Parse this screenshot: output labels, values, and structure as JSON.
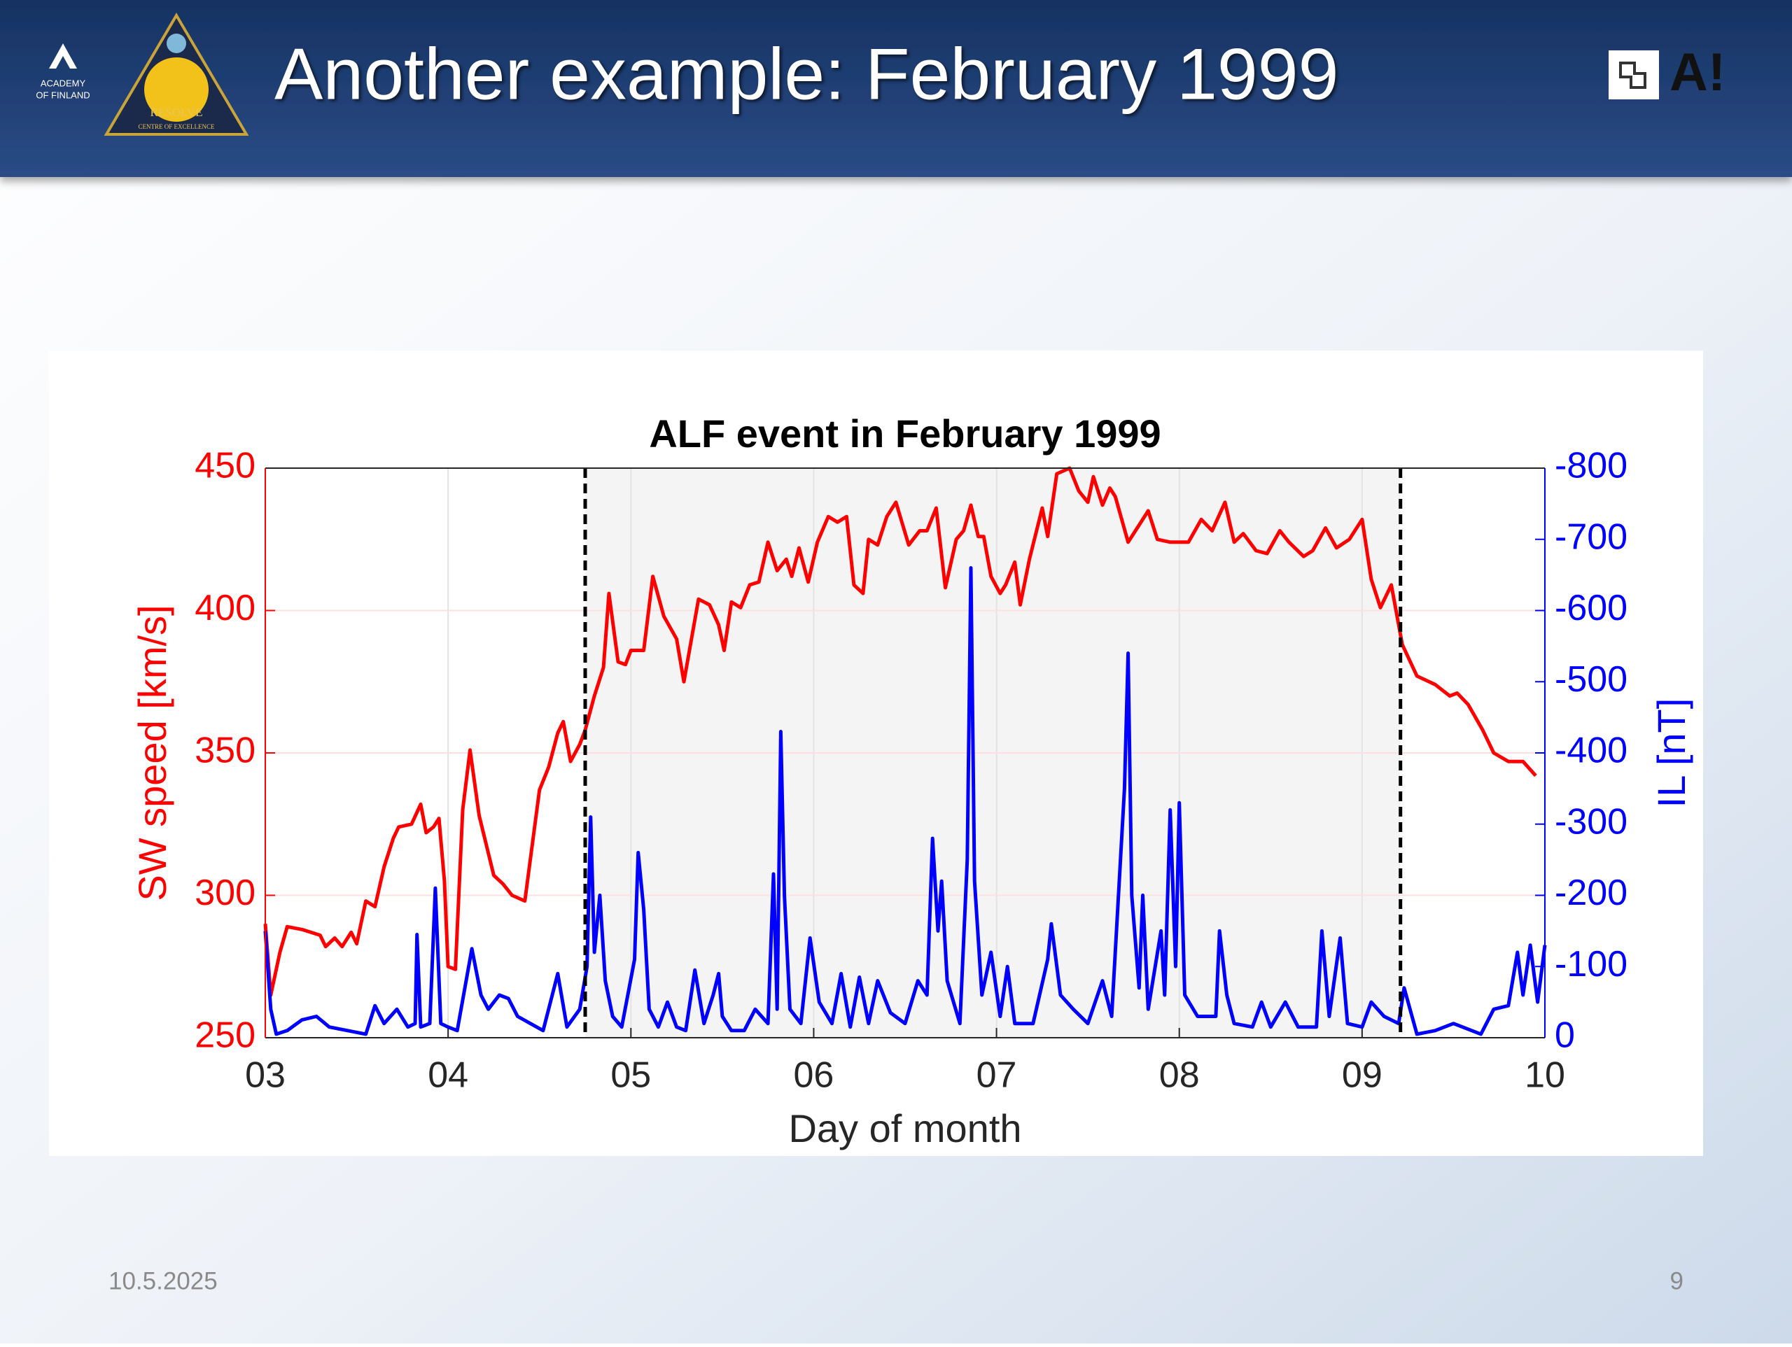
{
  "header": {
    "title": "Another example: February 1999",
    "logo_left": [
      "ACADEMY",
      "OF FINLAND"
    ],
    "logo_center": [
      "RESOLVE",
      "CENTRE OF EXCELLENCE"
    ],
    "logo_right": "A!"
  },
  "chart_data": {
    "type": "line",
    "title": "ALF event in February 1999",
    "xlabel": "Day of month",
    "ylabel": "SW speed [km/s]",
    "y2label": "IL [nT]",
    "xlim": [
      3,
      10
    ],
    "xticks": [
      {
        "value": 3,
        "label": "03"
      },
      {
        "value": 4,
        "label": "04"
      },
      {
        "value": 5,
        "label": "05"
      },
      {
        "value": 6,
        "label": "06"
      },
      {
        "value": 7,
        "label": "07"
      },
      {
        "value": 8,
        "label": "08"
      },
      {
        "value": 9,
        "label": "09"
      },
      {
        "value": 10,
        "label": "10"
      }
    ],
    "ylim": [
      250,
      450
    ],
    "yticks": [
      250,
      300,
      350,
      400,
      450
    ],
    "y2lim": [
      0,
      -800
    ],
    "y2ticks": [
      -800,
      -700,
      -600,
      -500,
      -400,
      -300,
      -200,
      -100,
      0
    ],
    "grid": true,
    "shaded_interval": [
      4.75,
      9.21
    ],
    "y_color": "#ff0000",
    "y2_color": "#0000ff",
    "series": [
      {
        "name": "SW speed",
        "color": "#ff0000",
        "x": [
          3.0,
          3.03,
          3.08,
          3.12,
          3.2,
          3.3,
          3.33,
          3.38,
          3.42,
          3.47,
          3.5,
          3.55,
          3.6,
          3.65,
          3.7,
          3.73,
          3.8,
          3.85,
          3.88,
          3.92,
          3.95,
          3.98,
          4.0,
          4.04,
          4.08,
          4.12,
          4.17,
          4.25,
          4.3,
          4.35,
          4.42,
          4.5,
          4.55,
          4.6,
          4.63,
          4.67,
          4.72,
          4.75,
          4.8,
          4.85,
          4.88,
          4.93,
          4.97,
          5.0,
          5.07,
          5.12,
          5.18,
          5.25,
          5.29,
          5.37,
          5.43,
          5.48,
          5.51,
          5.55,
          5.6,
          5.65,
          5.7,
          5.75,
          5.8,
          5.85,
          5.88,
          5.92,
          5.97,
          6.02,
          6.08,
          6.13,
          6.18,
          6.22,
          6.27,
          6.3,
          6.35,
          6.4,
          6.45,
          6.52,
          6.58,
          6.62,
          6.67,
          6.72,
          6.78,
          6.82,
          6.86,
          6.9,
          6.93,
          6.97,
          7.02,
          7.05,
          7.1,
          7.13,
          7.18,
          7.25,
          7.28,
          7.33,
          7.4,
          7.45,
          7.5,
          7.53,
          7.58,
          7.62,
          7.65,
          7.72,
          7.78,
          7.83,
          7.88,
          7.95,
          8.05,
          8.12,
          8.18,
          8.25,
          8.3,
          8.35,
          8.42,
          8.48,
          8.55,
          8.6,
          8.68,
          8.73,
          8.8,
          8.86,
          8.93,
          9.0,
          9.05,
          9.1,
          9.16,
          9.22,
          9.3,
          9.4,
          9.48,
          9.52,
          9.58,
          9.66,
          9.72,
          9.8,
          9.88,
          9.95
        ],
        "values": [
          290,
          265,
          280,
          289,
          288,
          286,
          282,
          285,
          282,
          287,
          283,
          298,
          296,
          310,
          320,
          324,
          325,
          332,
          322,
          324,
          327,
          305,
          275,
          274,
          330,
          351,
          328,
          307,
          304,
          300,
          298,
          337,
          345,
          357,
          361,
          347,
          353,
          358,
          370,
          380,
          406,
          382,
          381,
          386,
          386,
          412,
          398,
          390,
          375,
          404,
          402,
          395,
          386,
          403,
          401,
          409,
          410,
          424,
          414,
          418,
          412,
          422,
          410,
          424,
          433,
          431,
          433,
          409,
          406,
          425,
          423,
          433,
          438,
          423,
          428,
          428,
          436,
          408,
          425,
          428,
          437,
          426,
          426,
          412,
          406,
          409,
          417,
          402,
          418,
          436,
          426,
          448,
          450,
          442,
          438,
          447,
          437,
          443,
          440,
          424,
          430,
          435,
          425,
          424,
          424,
          432,
          428,
          438,
          424,
          427,
          421,
          420,
          428,
          424,
          419,
          421,
          429,
          422,
          425,
          432,
          411,
          401,
          409,
          388,
          377,
          374,
          370,
          371,
          367,
          358,
          350,
          347,
          347,
          342
        ]
      },
      {
        "name": "IL",
        "color": "#0000ff",
        "axis": "y2",
        "x": [
          3.0,
          3.03,
          3.06,
          3.12,
          3.2,
          3.28,
          3.35,
          3.45,
          3.55,
          3.6,
          3.65,
          3.72,
          3.78,
          3.82,
          3.83,
          3.85,
          3.9,
          3.93,
          3.96,
          4.0,
          4.05,
          4.13,
          4.18,
          4.22,
          4.28,
          4.33,
          4.38,
          4.45,
          4.52,
          4.6,
          4.65,
          4.72,
          4.76,
          4.78,
          4.8,
          4.83,
          4.86,
          4.9,
          4.95,
          5.02,
          5.04,
          5.07,
          5.1,
          5.15,
          5.2,
          5.25,
          5.3,
          5.35,
          5.4,
          5.45,
          5.48,
          5.5,
          5.55,
          5.62,
          5.68,
          5.75,
          5.78,
          5.8,
          5.82,
          5.84,
          5.87,
          5.93,
          5.98,
          6.03,
          6.1,
          6.15,
          6.2,
          6.25,
          6.3,
          6.35,
          6.42,
          6.5,
          6.57,
          6.62,
          6.65,
          6.68,
          6.7,
          6.73,
          6.8,
          6.84,
          6.86,
          6.88,
          6.92,
          6.97,
          7.02,
          7.06,
          7.1,
          7.2,
          7.28,
          7.3,
          7.35,
          7.42,
          7.5,
          7.58,
          7.63,
          7.7,
          7.72,
          7.74,
          7.78,
          7.8,
          7.83,
          7.9,
          7.92,
          7.95,
          7.98,
          8.0,
          8.03,
          8.1,
          8.2,
          8.22,
          8.26,
          8.3,
          8.4,
          8.45,
          8.5,
          8.58,
          8.65,
          8.75,
          8.78,
          8.82,
          8.88,
          8.92,
          9.0,
          9.05,
          9.12,
          9.2,
          9.23,
          9.3,
          9.4,
          9.5,
          9.6,
          9.65,
          9.72,
          9.8,
          9.85,
          9.88,
          9.92,
          9.96,
          10.0
        ],
        "values": [
          -150,
          -40,
          -5,
          -10,
          -25,
          -30,
          -15,
          -10,
          -5,
          -45,
          -20,
          -40,
          -15,
          -20,
          -145,
          -15,
          -20,
          -210,
          -20,
          -15,
          -10,
          -125,
          -60,
          -40,
          -60,
          -55,
          -30,
          -20,
          -10,
          -90,
          -15,
          -40,
          -100,
          -310,
          -120,
          -200,
          -80,
          -30,
          -15,
          -110,
          -260,
          -180,
          -40,
          -15,
          -50,
          -15,
          -10,
          -95,
          -20,
          -60,
          -90,
          -30,
          -10,
          -10,
          -40,
          -20,
          -230,
          -40,
          -430,
          -200,
          -40,
          -20,
          -140,
          -50,
          -20,
          -90,
          -15,
          -85,
          -20,
          -80,
          -35,
          -20,
          -80,
          -60,
          -280,
          -150,
          -220,
          -80,
          -20,
          -250,
          -660,
          -220,
          -60,
          -120,
          -30,
          -100,
          -20,
          -20,
          -110,
          -160,
          -60,
          -40,
          -20,
          -80,
          -30,
          -350,
          -540,
          -200,
          -70,
          -200,
          -40,
          -150,
          -60,
          -320,
          -100,
          -330,
          -60,
          -30,
          -30,
          -150,
          -60,
          -20,
          -15,
          -50,
          -15,
          -50,
          -15,
          -15,
          -150,
          -30,
          -140,
          -20,
          -15,
          -50,
          -30,
          -20,
          -70,
          -5,
          -10,
          -20,
          -10,
          -5,
          -40,
          -45,
          -120,
          -60,
          -130,
          -50,
          -130
        ]
      }
    ]
  },
  "footer": {
    "date": "10.5.2025",
    "page": "9"
  }
}
